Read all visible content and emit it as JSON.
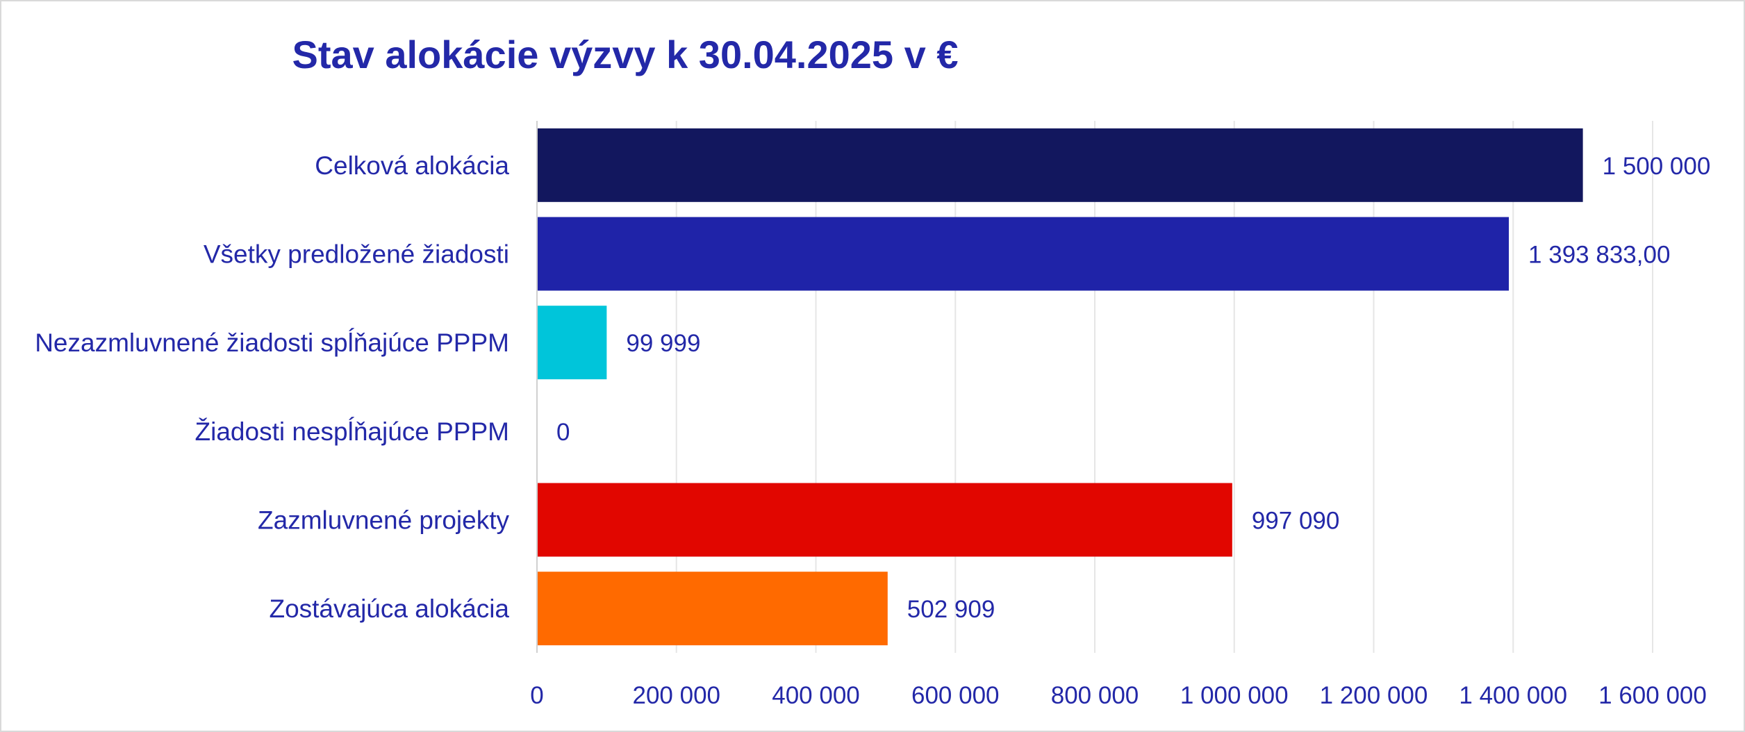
{
  "chart_data": {
    "type": "bar",
    "orientation": "horizontal",
    "title": "Stav alokácie výzvy k 30.04.2025 v €",
    "categories": [
      "Celková alokácia",
      "Všetky predložené žiadosti",
      "Nezazmluvnené žiadosti spĺňajúce PPPM",
      "Žiadosti nespĺňajúce PPPM",
      "Zazmluvnené projekty",
      "Zostávajúca alokácia"
    ],
    "values": [
      1500000,
      1393833,
      99999,
      0,
      997090,
      502909
    ],
    "value_labels": [
      "1 500 000",
      "1 393 833,00",
      "99 999",
      "0",
      "997 090",
      "502 909"
    ],
    "colors": [
      "#12175e",
      "#1f23a8",
      "#00c5da",
      "#1f23a8",
      "#e10600",
      "#ff6a00"
    ],
    "xlim": [
      0,
      1600000
    ],
    "xticks": [
      0,
      200000,
      400000,
      600000,
      800000,
      1000000,
      1200000,
      1400000,
      1600000
    ],
    "xtick_labels": [
      "0",
      "200 000",
      "400 000",
      "600 000",
      "800 000",
      "1 000 000",
      "1 200 000",
      "1 400 000",
      "1 600 000"
    ],
    "xlabel": "",
    "ylabel": "",
    "grid": "vertical",
    "legend": "none",
    "text_color": "#2328a8",
    "grid_color": "#e6e6e6"
  }
}
